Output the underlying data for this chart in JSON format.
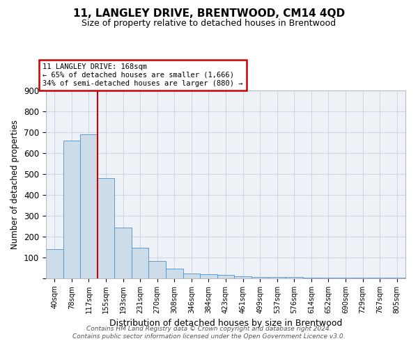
{
  "title": "11, LANGLEY DRIVE, BRENTWOOD, CM14 4QD",
  "subtitle": "Size of property relative to detached houses in Brentwood",
  "xlabel": "Distribution of detached houses by size in Brentwood",
  "ylabel": "Number of detached properties",
  "footnote1": "Contains HM Land Registry data © Crown copyright and database right 2024.",
  "footnote2": "Contains public sector information licensed under the Open Government Licence v3.0.",
  "bin_labels": [
    "40sqm",
    "78sqm",
    "117sqm",
    "155sqm",
    "193sqm",
    "231sqm",
    "270sqm",
    "308sqm",
    "346sqm",
    "384sqm",
    "423sqm",
    "461sqm",
    "499sqm",
    "537sqm",
    "576sqm",
    "614sqm",
    "652sqm",
    "690sqm",
    "729sqm",
    "767sqm",
    "805sqm"
  ],
  "bar_values": [
    140,
    660,
    690,
    480,
    245,
    148,
    83,
    48,
    23,
    20,
    18,
    10,
    8,
    8,
    6,
    5,
    5,
    5,
    2,
    2,
    2
  ],
  "bar_color": "#ccdce8",
  "bar_edgecolor": "#5b9bd5",
  "red_line_x": 2.5,
  "annotation_title": "11 LANGLEY DRIVE: 168sqm",
  "annotation_line2": "← 65% of detached houses are smaller (1,666)",
  "annotation_line3": "34% of semi-detached houses are larger (880) →",
  "annotation_box_color": "#cc0000",
  "ylim": [
    0,
    900
  ],
  "yticks": [
    0,
    100,
    200,
    300,
    400,
    500,
    600,
    700,
    800,
    900
  ],
  "grid_color": "#ccd8e4",
  "background_color": "#eef2f7"
}
